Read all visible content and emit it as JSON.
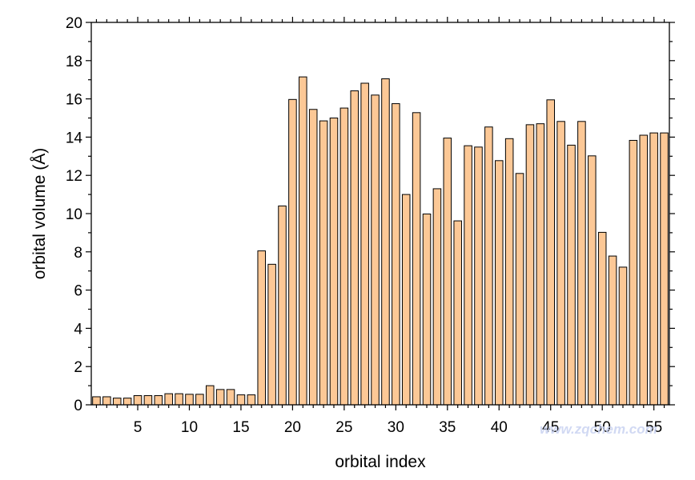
{
  "chart_data": {
    "type": "bar",
    "xlabel": "orbital index",
    "ylabel": "orbital volume (Å)",
    "ylim": [
      0,
      20
    ],
    "xlim": [
      0.5,
      56.5
    ],
    "y_ticks": [
      0,
      2,
      4,
      6,
      8,
      10,
      12,
      14,
      16,
      18,
      20
    ],
    "x_ticks": [
      5,
      10,
      15,
      20,
      25,
      30,
      35,
      40,
      45,
      50,
      55
    ],
    "grid": false,
    "bar_fill": "#fcc896",
    "bar_stroke": "#000000",
    "x": [
      1,
      2,
      3,
      4,
      5,
      6,
      7,
      8,
      9,
      10,
      11,
      12,
      13,
      14,
      15,
      16,
      17,
      18,
      19,
      20,
      21,
      22,
      23,
      24,
      25,
      26,
      27,
      28,
      29,
      30,
      31,
      32,
      33,
      34,
      35,
      36,
      37,
      38,
      39,
      40,
      41,
      42,
      43,
      44,
      45,
      46,
      47,
      48,
      49,
      50,
      51,
      52,
      53,
      54,
      55,
      56
    ],
    "values": [
      0.42,
      0.42,
      0.35,
      0.35,
      0.48,
      0.48,
      0.48,
      0.58,
      0.58,
      0.55,
      0.55,
      1.0,
      0.8,
      0.8,
      0.52,
      0.52,
      8.05,
      7.35,
      10.4,
      15.97,
      17.15,
      15.45,
      14.85,
      15.0,
      15.52,
      16.42,
      16.82,
      16.2,
      17.05,
      15.75,
      11.0,
      15.28,
      9.98,
      11.3,
      13.95,
      9.62,
      13.55,
      13.48,
      14.53,
      12.77,
      13.92,
      12.1,
      14.65,
      14.7,
      15.95,
      14.82,
      13.58,
      14.82,
      13.02,
      9.02,
      7.78,
      7.2,
      13.83,
      14.1,
      14.22,
      14.22
    ]
  },
  "watermark": "www.zqchem.com"
}
